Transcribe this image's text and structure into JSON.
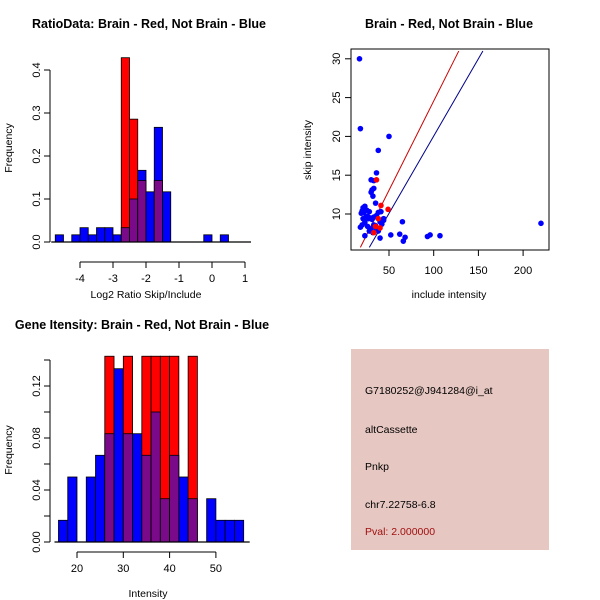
{
  "colors": {
    "brain": "#ff0000",
    "not_brain": "#0000ff",
    "overlap": "#7a0a8a",
    "red_line": "#cc0000",
    "blue_line": "#00008b",
    "panel_bg": "#e6c7c1",
    "pval_text": "#a01010"
  },
  "chart_data": [
    {
      "id": "ratio_hist",
      "type": "bar",
      "subtype": "overlaid-histogram",
      "title": "RatioData: Brain - Red, Not Brain - Blue",
      "xlabel": "Log2 Ratio Skip/Include",
      "ylabel": "Frequency",
      "xlim": [
        -4.75,
        1.0
      ],
      "ylim": [
        0,
        0.4
      ],
      "xticks": [
        -4,
        -3,
        -2,
        -1,
        0,
        1
      ],
      "yticks": [
        0.0,
        0.1,
        0.2,
        0.3,
        0.4
      ],
      "ytick_labels": [
        "0.0",
        "0.1",
        "0.2",
        "0.3",
        "0.4"
      ],
      "bin_width": 0.25,
      "bin_starts": [
        -4.75,
        -4.5,
        -4.25,
        -4.0,
        -3.75,
        -3.5,
        -3.25,
        -3.0,
        -2.75,
        -2.5,
        -2.25,
        -2.0,
        -1.75,
        -1.5,
        -1.25,
        -1.0,
        -0.75,
        -0.5,
        -0.25,
        0.0,
        0.25,
        0.5,
        0.75
      ],
      "series": [
        {
          "name": "Not Brain",
          "color_key": "not_brain",
          "values": [
            0.0167,
            0,
            0.0167,
            0.0333,
            0.0167,
            0.0333,
            0.0333,
            0.0167,
            0.0333,
            0.1,
            0.1667,
            0.1167,
            0.2667,
            0.1167,
            0,
            0,
            0,
            0,
            0.0167,
            0,
            0.0167,
            0,
            0
          ]
        },
        {
          "name": "Brain",
          "color_key": "brain",
          "values": [
            0,
            0,
            0,
            0,
            0,
            0,
            0,
            0,
            0.4286,
            0.2857,
            0.1429,
            0,
            0.1429,
            0,
            0,
            0,
            0,
            0,
            0,
            0,
            0,
            0,
            0
          ]
        }
      ]
    },
    {
      "id": "intensity_scatter",
      "type": "scatter",
      "title": "Brain - Red, Not Brain - Blue",
      "xlabel": "include intensity",
      "ylabel": "skip intensity",
      "xlim": [
        12,
        230
      ],
      "ylim": [
        5.7,
        31
      ],
      "xticks": [
        50,
        100,
        150,
        200
      ],
      "yticks": [
        10,
        15,
        20,
        25,
        30
      ],
      "lines": [
        {
          "name": "Brain fit",
          "color_key": "red_line",
          "points": [
            [
              18,
              5.7
            ],
            [
              128,
              31
            ]
          ]
        },
        {
          "name": "Not Brain fit",
          "color_key": "blue_line",
          "points": [
            [
              28,
              5.7
            ],
            [
              155,
              31
            ]
          ]
        }
      ],
      "series": [
        {
          "name": "Not Brain",
          "color_key": "not_brain",
          "points": [
            [
              17,
              30
            ],
            [
              18,
              21
            ],
            [
              38,
              18.2
            ],
            [
              50,
              20
            ],
            [
              36,
              15.3
            ],
            [
              30,
              14.4
            ],
            [
              33,
              14.3
            ],
            [
              31,
              13.1
            ],
            [
              33,
              13.3
            ],
            [
              30,
              12.8
            ],
            [
              32,
              12.3
            ],
            [
              35,
              11.4
            ],
            [
              21,
              10.8
            ],
            [
              23,
              11
            ],
            [
              20,
              10.4
            ],
            [
              22,
              10.2
            ],
            [
              25,
              10.5
            ],
            [
              28,
              10.3
            ],
            [
              19,
              10.1
            ],
            [
              26,
              9.7
            ],
            [
              21,
              9.4
            ],
            [
              23,
              9.2
            ],
            [
              24,
              9.6
            ],
            [
              27,
              9.4
            ],
            [
              29,
              9.5
            ],
            [
              31,
              9.3
            ],
            [
              33,
              9.6
            ],
            [
              36,
              9.8
            ],
            [
              38,
              10.2
            ],
            [
              41,
              10.3
            ],
            [
              44,
              9.2
            ],
            [
              18,
              8.3
            ],
            [
              20,
              8.6
            ],
            [
              23,
              8.9
            ],
            [
              26,
              8.4
            ],
            [
              30,
              8.1
            ],
            [
              33,
              8.6
            ],
            [
              35,
              8.5
            ],
            [
              42,
              8.7
            ],
            [
              44,
              9.4
            ],
            [
              23,
              7.2
            ],
            [
              28,
              7.8
            ],
            [
              32,
              7.6
            ],
            [
              38,
              7.8
            ],
            [
              40,
              6.9
            ],
            [
              52,
              7.3
            ],
            [
              62,
              7.4
            ],
            [
              65,
              9.0
            ],
            [
              66,
              6.5
            ],
            [
              68,
              7.0
            ],
            [
              93,
              7.1
            ],
            [
              96,
              7.3
            ],
            [
              107,
              7.2
            ],
            [
              220,
              8.8
            ],
            [
              36,
              8.0
            ],
            [
              40,
              9.0
            ]
          ]
        },
        {
          "name": "Brain",
          "color_key": "brain",
          "points": [
            [
              36,
              14.4
            ],
            [
              41,
              11.1
            ],
            [
              49,
              10.6
            ],
            [
              38,
              9.4
            ],
            [
              35,
              8.4
            ],
            [
              40,
              8.2
            ],
            [
              33,
              7.6
            ]
          ]
        }
      ]
    },
    {
      "id": "gene_intensity_hist",
      "type": "bar",
      "subtype": "overlaid-histogram",
      "title": "Gene Itensity: Brain - Red, Not Brain - Blue",
      "xlabel": "Intensity",
      "ylabel": "Frequency",
      "xlim": [
        16,
        56
      ],
      "ylim": [
        0,
        0.14
      ],
      "xticks": [
        20,
        30,
        40,
        50
      ],
      "yticks": [
        0.0,
        0.02,
        0.04,
        0.06,
        0.08,
        0.1,
        0.12,
        0.14
      ],
      "ytick_labels": [
        "0.00",
        "",
        "0.04",
        "",
        "0.08",
        "",
        "0.12",
        ""
      ],
      "bin_width": 2,
      "bin_starts": [
        16,
        18,
        20,
        22,
        24,
        26,
        28,
        30,
        32,
        34,
        36,
        38,
        40,
        42,
        44,
        46,
        48,
        50,
        52,
        54
      ],
      "series": [
        {
          "name": "Not Brain",
          "color_key": "not_brain",
          "values": [
            0.0167,
            0.05,
            0,
            0.05,
            0.0667,
            0.0833,
            0.1333,
            0.0833,
            0.0833,
            0.0667,
            0.1,
            0.0333,
            0.0667,
            0.05,
            0.0333,
            0,
            0.0333,
            0.0167,
            0.0167,
            0.0167
          ]
        },
        {
          "name": "Brain",
          "color_key": "brain",
          "values": [
            0,
            0,
            0,
            0,
            0,
            0.1429,
            0,
            0.1429,
            0,
            0.1429,
            0.1429,
            0.1429,
            0.1429,
            0,
            0.1429,
            0,
            0,
            0,
            0,
            0
          ]
        }
      ]
    }
  ],
  "info_panel": {
    "probe_id": "G7180252@J941284@i_at",
    "event_type": "altCassette",
    "gene": "Pnkp",
    "location": "chr7.22758-6.8",
    "pval": "Pval: 2.000000"
  }
}
